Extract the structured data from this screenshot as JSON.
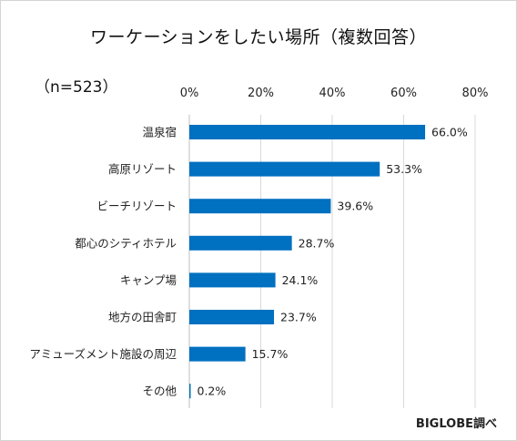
{
  "title": "ワーケーションをしたい場所（複数回答）",
  "sample_note": "（n=523）",
  "credit": "BIGLOBE調べ",
  "chart_data": {
    "type": "bar",
    "orientation": "horizontal",
    "categories": [
      "温泉宿",
      "高原リゾート",
      "ビーチリゾート",
      "都心のシティホテル",
      "キャンプ場",
      "地方の田舎町",
      "アミューズメント施設の周辺",
      "その他"
    ],
    "values": [
      66.0,
      53.3,
      39.6,
      28.7,
      24.1,
      23.7,
      15.7,
      0.2
    ],
    "value_labels": [
      "66.0%",
      "53.3%",
      "39.6%",
      "28.7%",
      "24.1%",
      "23.7%",
      "15.7%",
      "0.2%"
    ],
    "xlim": [
      0,
      80
    ],
    "ticks": [
      0,
      20,
      40,
      60,
      80
    ],
    "tick_labels": [
      "0%",
      "20%",
      "40%",
      "60%",
      "80%"
    ],
    "axis_position": "top",
    "grid": true,
    "bar_color": "#0070c0",
    "grid_color": "#d9d9d9"
  }
}
